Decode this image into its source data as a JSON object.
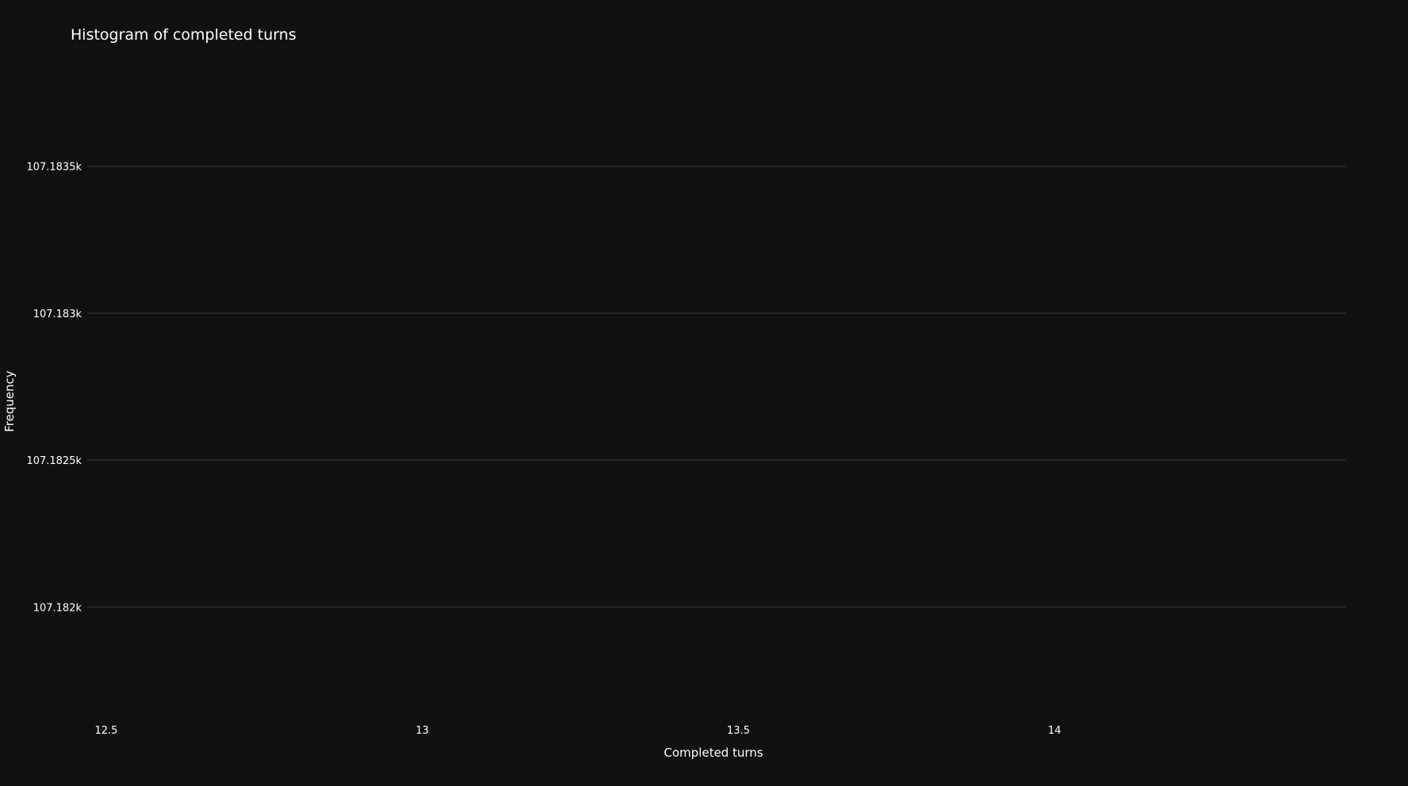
{
  "chart_data": {
    "type": "bar",
    "title": "Histogram of completed turns",
    "xlabel": "Completed turns",
    "ylabel": "Frequency",
    "x_ticks": [
      "12.5",
      "13",
      "13.5",
      "14"
    ],
    "x_tick_values": [
      12.5,
      13,
      13.5,
      14
    ],
    "y_ticks": [
      "107.1835k",
      "107.183k",
      "107.1825k",
      "107.182k"
    ],
    "y_tick_values": [
      107183.5,
      107183,
      107182.5,
      107182
    ],
    "xlim": [
      12.47,
      14.46
    ],
    "ylim": [
      107181.65,
      107183.85
    ],
    "grid": true,
    "legend": "none",
    "colors": {
      "background": "#111111",
      "grid": "#2b2f36",
      "text": "#ffffff"
    },
    "series": []
  }
}
